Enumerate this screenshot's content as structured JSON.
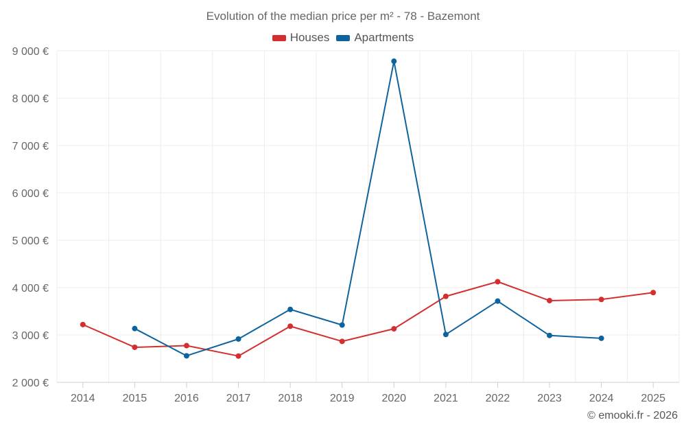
{
  "chart_data": {
    "type": "line",
    "title": "Evolution of the median price per m² - 78 - Bazemont",
    "categories": [
      "2014",
      "2015",
      "2016",
      "2017",
      "2018",
      "2019",
      "2020",
      "2021",
      "2022",
      "2023",
      "2024",
      "2025"
    ],
    "series": [
      {
        "name": "Houses",
        "color": "#d32f2f",
        "values": [
          3220,
          2740,
          2775,
          2555,
          3185,
          2865,
          3130,
          3815,
          4125,
          3725,
          3750,
          3895
        ]
      },
      {
        "name": "Apartments",
        "color": "#0e639c",
        "values": [
          null,
          3135,
          2560,
          2915,
          3540,
          3210,
          8780,
          3010,
          3715,
          2990,
          2930,
          null
        ]
      }
    ],
    "y_ticks": [
      "2 000 €",
      "3 000 €",
      "4 000 €",
      "5 000 €",
      "6 000 €",
      "7 000 €",
      "8 000 €",
      "9 000 €"
    ],
    "ylim": [
      2000,
      9000
    ],
    "xlabel": "",
    "ylabel": "",
    "legend_position": "top-center"
  },
  "credit": "© emooki.fr - 2026"
}
